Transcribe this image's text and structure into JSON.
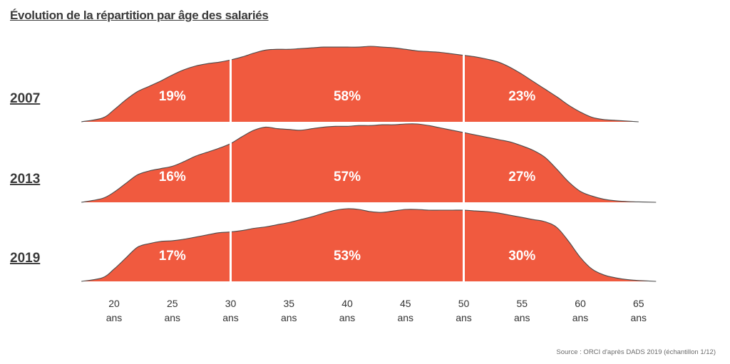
{
  "title": "Évolution de la répartition par âge des salariés",
  "source": "Source : ORCI d'après DADS 2019 (échantillon 1/12)",
  "colors": {
    "fill": "#f05a3f",
    "outline": "#4a4a4a",
    "separator": "#ffffff",
    "label": "#ffffff",
    "year": "#3a3a3a",
    "axis_text": "#333333"
  },
  "chart_data": {
    "type": "area",
    "title": "Évolution de la répartition par âge des salariés",
    "xlabel": "",
    "ylabel": "",
    "x_ticks": [
      20,
      25,
      30,
      35,
      40,
      45,
      50,
      55,
      60,
      65
    ],
    "x_tick_labels": [
      "20",
      "25",
      "30",
      "35",
      "40",
      "45",
      "50",
      "55",
      "60",
      "65"
    ],
    "x_tick_sublabel": "ans",
    "xlim": [
      17.2,
      66.5
    ],
    "group_boundaries": [
      30,
      50
    ],
    "density_scale": [
      0,
      1
    ],
    "series": [
      {
        "name": "2007",
        "shares": [
          "19%",
          "58%",
          "23%"
        ],
        "x": [
          17.2,
          19,
          20,
          21,
          22,
          23,
          24,
          25,
          26,
          27,
          28,
          29,
          30,
          31,
          32,
          33,
          34,
          35,
          36,
          37,
          38,
          39,
          40,
          41,
          42,
          43,
          44,
          45,
          46,
          47,
          48,
          49,
          50,
          51,
          52,
          53,
          54,
          55,
          56,
          57,
          58,
          59,
          60,
          61,
          62,
          63,
          64,
          65
        ],
        "y": [
          0.0,
          0.05,
          0.16,
          0.29,
          0.4,
          0.47,
          0.54,
          0.62,
          0.69,
          0.74,
          0.77,
          0.79,
          0.82,
          0.86,
          0.91,
          0.95,
          0.96,
          0.96,
          0.97,
          0.98,
          0.99,
          0.99,
          0.99,
          0.99,
          1.0,
          0.99,
          0.98,
          0.96,
          0.94,
          0.93,
          0.92,
          0.9,
          0.88,
          0.86,
          0.83,
          0.79,
          0.72,
          0.63,
          0.53,
          0.43,
          0.33,
          0.22,
          0.13,
          0.06,
          0.03,
          0.02,
          0.01,
          0.0
        ]
      },
      {
        "name": "2013",
        "shares": [
          "16%",
          "57%",
          "27%"
        ],
        "x": [
          17.2,
          19,
          20,
          21,
          22,
          23,
          24,
          25,
          26,
          27,
          28,
          29,
          30,
          31,
          32,
          33,
          34,
          35,
          36,
          37,
          38,
          39,
          40,
          41,
          42,
          43,
          44,
          45,
          46,
          47,
          48,
          49,
          50,
          51,
          52,
          53,
          54,
          55,
          56,
          57,
          58,
          59,
          60,
          61,
          62,
          63,
          64,
          65,
          66.5
        ],
        "y": [
          0.0,
          0.05,
          0.13,
          0.24,
          0.35,
          0.4,
          0.43,
          0.46,
          0.52,
          0.59,
          0.64,
          0.69,
          0.75,
          0.84,
          0.92,
          0.96,
          0.94,
          0.93,
          0.92,
          0.94,
          0.96,
          0.97,
          0.97,
          0.98,
          0.98,
          0.99,
          0.99,
          1.0,
          1.0,
          0.98,
          0.95,
          0.92,
          0.89,
          0.86,
          0.83,
          0.8,
          0.77,
          0.72,
          0.66,
          0.57,
          0.42,
          0.26,
          0.14,
          0.08,
          0.04,
          0.02,
          0.01,
          0.005,
          0.0
        ]
      },
      {
        "name": "2019",
        "shares": [
          "17%",
          "53%",
          "30%"
        ],
        "x": [
          17.2,
          19,
          20,
          21,
          22,
          23,
          24,
          25,
          26,
          27,
          28,
          29,
          30,
          31,
          32,
          33,
          34,
          35,
          36,
          37,
          38,
          39,
          40,
          41,
          42,
          43,
          44,
          45,
          46,
          47,
          48,
          49,
          50,
          51,
          52,
          53,
          54,
          55,
          56,
          57,
          58,
          59,
          60,
          61,
          62,
          63,
          64,
          65,
          66.5
        ],
        "y": [
          0.0,
          0.05,
          0.17,
          0.32,
          0.47,
          0.52,
          0.55,
          0.56,
          0.58,
          0.61,
          0.64,
          0.67,
          0.68,
          0.7,
          0.73,
          0.75,
          0.78,
          0.81,
          0.85,
          0.89,
          0.94,
          0.98,
          1.0,
          0.99,
          0.96,
          0.95,
          0.97,
          0.99,
          0.99,
          0.98,
          0.98,
          0.98,
          0.98,
          0.97,
          0.96,
          0.94,
          0.91,
          0.88,
          0.85,
          0.82,
          0.74,
          0.55,
          0.33,
          0.17,
          0.09,
          0.05,
          0.025,
          0.012,
          0.0
        ]
      }
    ]
  }
}
